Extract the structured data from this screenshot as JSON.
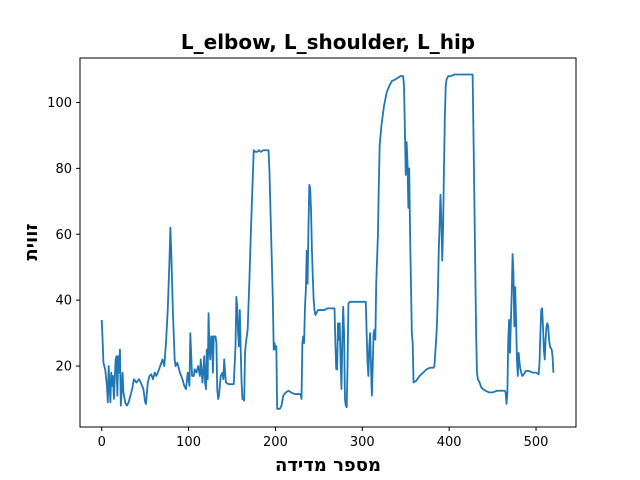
{
  "chart_data": {
    "type": "line",
    "title": "L_elbow, L_shoulder, L_hip",
    "xlabel": "מספר מדידה",
    "ylabel": "זווית",
    "xlim": [
      -25,
      546
    ],
    "ylim": [
      1.5,
      113.5
    ],
    "xticks": [
      0,
      100,
      200,
      300,
      400,
      500
    ],
    "yticks": [
      20,
      40,
      60,
      80,
      100
    ],
    "grid": false,
    "line_color": "#1f77b4",
    "series": [
      {
        "points": [
          [
            0,
            34
          ],
          [
            1,
            28
          ],
          [
            2,
            21
          ],
          [
            4,
            19
          ],
          [
            6,
            14
          ],
          [
            7,
            9
          ],
          [
            8,
            20
          ],
          [
            9,
            14
          ],
          [
            10,
            9
          ],
          [
            11,
            18
          ],
          [
            12,
            14
          ],
          [
            13,
            17
          ],
          [
            14,
            10
          ],
          [
            15,
            16
          ],
          [
            16,
            22
          ],
          [
            17,
            23
          ],
          [
            18,
            11
          ],
          [
            19,
            23
          ],
          [
            20,
            18
          ],
          [
            21,
            25
          ],
          [
            22,
            8
          ],
          [
            23,
            13
          ],
          [
            24,
            18
          ],
          [
            25,
            12
          ],
          [
            27,
            9
          ],
          [
            29,
            8
          ],
          [
            31,
            9
          ],
          [
            33,
            11
          ],
          [
            35,
            13
          ],
          [
            37,
            16
          ],
          [
            40,
            15
          ],
          [
            43,
            16
          ],
          [
            45,
            15
          ],
          [
            48,
            13
          ],
          [
            50,
            9
          ],
          [
            51,
            8.5
          ],
          [
            53,
            15
          ],
          [
            55,
            17
          ],
          [
            57,
            17.5
          ],
          [
            59,
            16
          ],
          [
            61,
            18
          ],
          [
            63,
            17
          ],
          [
            66,
            19
          ],
          [
            70,
            22
          ],
          [
            72,
            20
          ],
          [
            74,
            27
          ],
          [
            76,
            37
          ],
          [
            78,
            52
          ],
          [
            79,
            62
          ],
          [
            80,
            55
          ],
          [
            82,
            36
          ],
          [
            84,
            22
          ],
          [
            85,
            20
          ],
          [
            87,
            21
          ],
          [
            90,
            18
          ],
          [
            93,
            16
          ],
          [
            95,
            14
          ],
          [
            97,
            13
          ],
          [
            99,
            18
          ],
          [
            101,
            14
          ],
          [
            102,
            30
          ],
          [
            104,
            17
          ],
          [
            106,
            17
          ],
          [
            107,
            19
          ],
          [
            109,
            18
          ],
          [
            111,
            20
          ],
          [
            113,
            17
          ],
          [
            114,
            22
          ],
          [
            116,
            15
          ],
          [
            118,
            23
          ],
          [
            119,
            15
          ],
          [
            120,
            13
          ],
          [
            121,
            25
          ],
          [
            122,
            16
          ],
          [
            123,
            36
          ],
          [
            124,
            25
          ],
          [
            125,
            22
          ],
          [
            126,
            29
          ],
          [
            127,
            29
          ],
          [
            128,
            18
          ],
          [
            129,
            29
          ],
          [
            131,
            29
          ],
          [
            132,
            27
          ],
          [
            133,
            13
          ],
          [
            134,
            10
          ],
          [
            135,
            11
          ],
          [
            137,
            17
          ],
          [
            139,
            18
          ],
          [
            140,
            16
          ],
          [
            141,
            22
          ],
          [
            142,
            18
          ],
          [
            143,
            15
          ],
          [
            146,
            14.5
          ],
          [
            150,
            14.5
          ],
          [
            152,
            14.5
          ],
          [
            154,
            26
          ],
          [
            155,
            41
          ],
          [
            156,
            38
          ],
          [
            157,
            30
          ],
          [
            158,
            26
          ],
          [
            159,
            37
          ],
          [
            160,
            25
          ],
          [
            161,
            15
          ],
          [
            162,
            10
          ],
          [
            163,
            10
          ],
          [
            164,
            9.5
          ],
          [
            165,
            24
          ],
          [
            166,
            27
          ],
          [
            168,
            31
          ],
          [
            170,
            46
          ],
          [
            172,
            63
          ],
          [
            174,
            78
          ],
          [
            175,
            85.5
          ],
          [
            177,
            85
          ],
          [
            179,
            85
          ],
          [
            181,
            85.5
          ],
          [
            183,
            85
          ],
          [
            186,
            85.5
          ],
          [
            189,
            85.5
          ],
          [
            192,
            85.5
          ],
          [
            193,
            80
          ],
          [
            195,
            60
          ],
          [
            197,
            40
          ],
          [
            198,
            25
          ],
          [
            199,
            27
          ],
          [
            200,
            25
          ],
          [
            201,
            26
          ],
          [
            202,
            7
          ],
          [
            205,
            7
          ],
          [
            207,
            8
          ],
          [
            209,
            11
          ],
          [
            212,
            12
          ],
          [
            215,
            12.5
          ],
          [
            218,
            12
          ],
          [
            222,
            11.5
          ],
          [
            227,
            11.5
          ],
          [
            229,
            11.5
          ],
          [
            230,
            10
          ],
          [
            231,
            27
          ],
          [
            232,
            29
          ],
          [
            233,
            27
          ],
          [
            234,
            38
          ],
          [
            235,
            43
          ],
          [
            236,
            55
          ],
          [
            237,
            45
          ],
          [
            238,
            62
          ],
          [
            239,
            75
          ],
          [
            240,
            74
          ],
          [
            241,
            67
          ],
          [
            242,
            55
          ],
          [
            243,
            47
          ],
          [
            244,
            40
          ],
          [
            245,
            37
          ],
          [
            246,
            35.5
          ],
          [
            249,
            37
          ],
          [
            252,
            37
          ],
          [
            256,
            37
          ],
          [
            260,
            37.5
          ],
          [
            265,
            37.5
          ],
          [
            268,
            37.5
          ],
          [
            269,
            27
          ],
          [
            270,
            19
          ],
          [
            271,
            19
          ],
          [
            272,
            33
          ],
          [
            273,
            28
          ],
          [
            274,
            33
          ],
          [
            275,
            21
          ],
          [
            276,
            13
          ],
          [
            277,
            28
          ],
          [
            278,
            38
          ],
          [
            279,
            30
          ],
          [
            280,
            10
          ],
          [
            281,
            8
          ],
          [
            282,
            7.5
          ],
          [
            283,
            20
          ],
          [
            284,
            39
          ],
          [
            286,
            39.5
          ],
          [
            290,
            39.5
          ],
          [
            295,
            39.5
          ],
          [
            300,
            39.5
          ],
          [
            304,
            39.5
          ],
          [
            305,
            30
          ],
          [
            306,
            21
          ],
          [
            307,
            17
          ],
          [
            308,
            26
          ],
          [
            309,
            30
          ],
          [
            310,
            20
          ],
          [
            311,
            11
          ],
          [
            312,
            20
          ],
          [
            313,
            30
          ],
          [
            314,
            31
          ],
          [
            315,
            28
          ],
          [
            316,
            45
          ],
          [
            318,
            60
          ],
          [
            319,
            75
          ],
          [
            320,
            87
          ],
          [
            322,
            93
          ],
          [
            325,
            99
          ],
          [
            328,
            103
          ],
          [
            331,
            105
          ],
          [
            334,
            106.5
          ],
          [
            338,
            107
          ],
          [
            341,
            107.5
          ],
          [
            344,
            108
          ],
          [
            347,
            108
          ],
          [
            348,
            105
          ],
          [
            349,
            92
          ],
          [
            350,
            78
          ],
          [
            351,
            88
          ],
          [
            352,
            82
          ],
          [
            353,
            68
          ],
          [
            354,
            80
          ],
          [
            355,
            60
          ],
          [
            356,
            45
          ],
          [
            357,
            30
          ],
          [
            358,
            27
          ],
          [
            359,
            15
          ],
          [
            362,
            15.5
          ],
          [
            366,
            17
          ],
          [
            370,
            18
          ],
          [
            374,
            19
          ],
          [
            378,
            19.5
          ],
          [
            382,
            19.5
          ],
          [
            383,
            20
          ],
          [
            384,
            24
          ],
          [
            385,
            28
          ],
          [
            386,
            33
          ],
          [
            387,
            42
          ],
          [
            388,
            55
          ],
          [
            389,
            63
          ],
          [
            390,
            72
          ],
          [
            391,
            64
          ],
          [
            392,
            52
          ],
          [
            393,
            62
          ],
          [
            394,
            80
          ],
          [
            395,
            95
          ],
          [
            396,
            105
          ],
          [
            397,
            107
          ],
          [
            399,
            108
          ],
          [
            402,
            108
          ],
          [
            406,
            108.5
          ],
          [
            412,
            108.5
          ],
          [
            418,
            108.5
          ],
          [
            424,
            108.5
          ],
          [
            427,
            108.5
          ],
          [
            428,
            90
          ],
          [
            429,
            70
          ],
          [
            430,
            50
          ],
          [
            431,
            30
          ],
          [
            432,
            18
          ],
          [
            433,
            16
          ],
          [
            435,
            15
          ],
          [
            437,
            13.5
          ],
          [
            439,
            13
          ],
          [
            442,
            12.5
          ],
          [
            446,
            12
          ],
          [
            450,
            12
          ],
          [
            455,
            12.5
          ],
          [
            460,
            12.5
          ],
          [
            464,
            12.5
          ],
          [
            465,
            12
          ],
          [
            466,
            8.5
          ],
          [
            467,
            12
          ],
          [
            468,
            28
          ],
          [
            469,
            34
          ],
          [
            470,
            24
          ],
          [
            471,
            33
          ],
          [
            472,
            42
          ],
          [
            473,
            54
          ],
          [
            474,
            48
          ],
          [
            475,
            32
          ],
          [
            476,
            44
          ],
          [
            477,
            34
          ],
          [
            478,
            22
          ],
          [
            479,
            17
          ],
          [
            480,
            24
          ],
          [
            481,
            21
          ],
          [
            482,
            19
          ],
          [
            484,
            17
          ],
          [
            486,
            17.5
          ],
          [
            488,
            18.5
          ],
          [
            492,
            18.5
          ],
          [
            496,
            18
          ],
          [
            500,
            18
          ],
          [
            503,
            17.5
          ],
          [
            504,
            21
          ],
          [
            505,
            30
          ],
          [
            506,
            37
          ],
          [
            507,
            37.5
          ],
          [
            508,
            32
          ],
          [
            509,
            25
          ],
          [
            510,
            22
          ],
          [
            511,
            28
          ],
          [
            512,
            32
          ],
          [
            513,
            33
          ],
          [
            514,
            32
          ],
          [
            515,
            28
          ],
          [
            516,
            26
          ],
          [
            518,
            25
          ],
          [
            519,
            23
          ],
          [
            520,
            18
          ]
        ]
      }
    ]
  }
}
